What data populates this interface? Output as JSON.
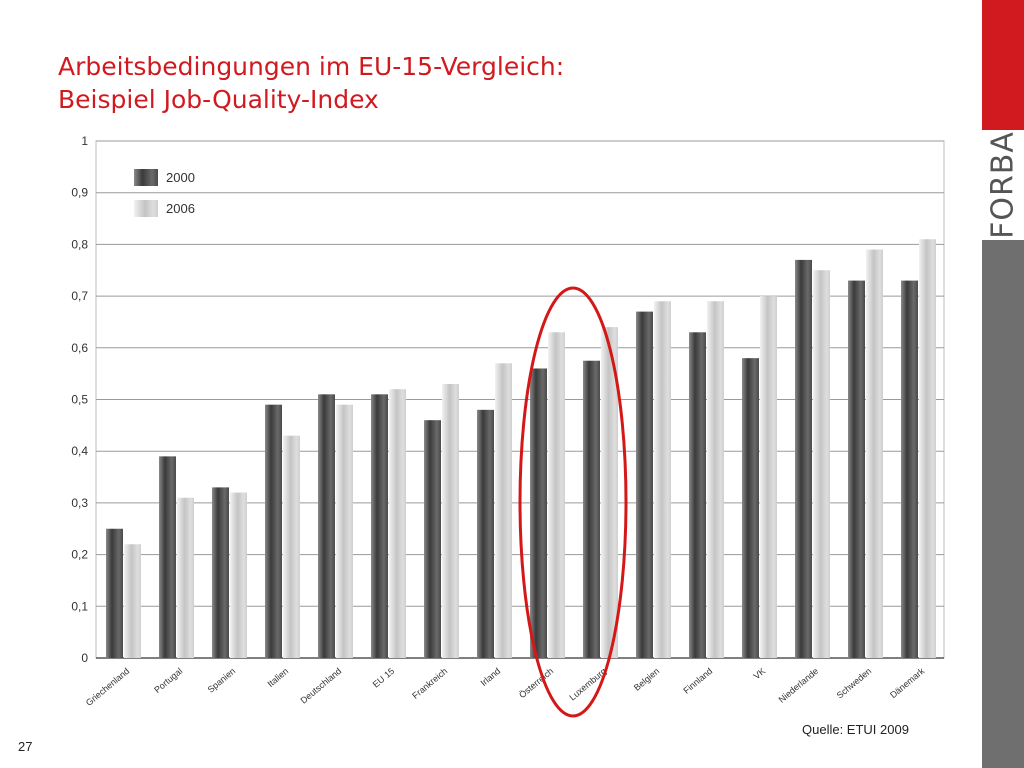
{
  "slide": {
    "title_line1": "Arbeitsbedingungen im EU-15-Vergleich:",
    "title_line2": "Beispiel Job-Quality-Index",
    "source": "Quelle: ETUI 2009",
    "page_number": "27",
    "logo_text": "FORBA"
  },
  "colors": {
    "title": "#d11a1f",
    "sidebar_accent": "#d11a1f",
    "sidebar": "#6f6f6f",
    "series_2000": "#5e5e5e",
    "series_2006": "#cfcfcf",
    "highlight_circle": "#d41818"
  },
  "chart_data": {
    "type": "bar",
    "categories": [
      "Griechenland",
      "Portugal",
      "Spanien",
      "Italien",
      "Deutschland",
      "EU 15",
      "Frankreich",
      "Irland",
      "Österreich",
      "Luxemburg",
      "Belgien",
      "Finnland",
      "VK",
      "Niederlande",
      "Schweden",
      "Dänemark"
    ],
    "series": [
      {
        "name": "2000",
        "values": [
          0.25,
          0.39,
          0.33,
          0.49,
          0.51,
          0.51,
          0.46,
          0.48,
          0.56,
          0.575,
          0.67,
          0.63,
          0.58,
          0.77,
          0.73,
          0.73
        ]
      },
      {
        "name": "2006",
        "values": [
          0.22,
          0.31,
          0.32,
          0.43,
          0.49,
          0.52,
          0.53,
          0.57,
          0.63,
          0.64,
          0.69,
          0.69,
          0.7,
          0.75,
          0.79,
          0.81
        ]
      }
    ],
    "yticks": [
      "0",
      "0,1",
      "0,2",
      "0,3",
      "0,4",
      "0,5",
      "0,6",
      "0,7",
      "0,8",
      "0,9",
      "1"
    ],
    "ylim": [
      0,
      1
    ],
    "grid": true,
    "legend_position": "top-left",
    "highlight": {
      "shape": "ellipse",
      "categories": [
        "Österreich",
        "Luxemburg"
      ]
    }
  }
}
